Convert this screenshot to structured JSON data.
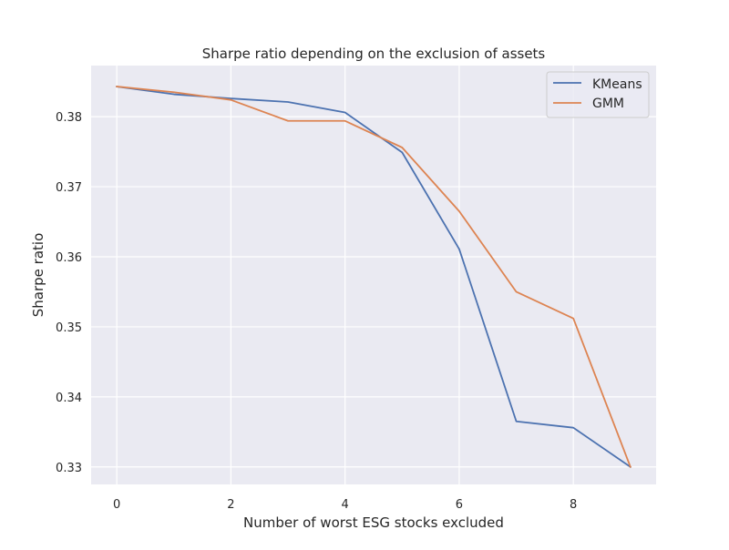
{
  "chart_data": {
    "type": "line",
    "title": "Sharpe ratio depending on the exclusion of assets",
    "xlabel": "Number of worst ESG stocks excluded",
    "ylabel": "Sharpe ratio",
    "x": [
      0,
      1,
      2,
      3,
      4,
      5,
      6,
      7,
      8,
      9
    ],
    "xlim": [
      -0.45,
      9.45
    ],
    "ylim": [
      0.3275,
      0.3873
    ],
    "xticks": [
      0,
      2,
      4,
      6,
      8
    ],
    "yticks": [
      0.33,
      0.34,
      0.35,
      0.36,
      0.37,
      0.38
    ],
    "xtick_labels": [
      "0",
      "2",
      "4",
      "6",
      "8"
    ],
    "ytick_labels": [
      "0.33",
      "0.34",
      "0.35",
      "0.36",
      "0.37",
      "0.38"
    ],
    "grid": true,
    "legend_position": "top-right",
    "series": [
      {
        "name": "KMeans",
        "color": "#4c72b0",
        "values": [
          0.3843,
          0.3832,
          0.3826,
          0.3821,
          0.3806,
          0.3749,
          0.3611,
          0.3365,
          0.3356,
          0.33
        ]
      },
      {
        "name": "GMM",
        "color": "#dd8452",
        "values": [
          0.3843,
          0.3835,
          0.3824,
          0.3794,
          0.3794,
          0.3756,
          0.3665,
          0.355,
          0.3512,
          0.33
        ]
      }
    ]
  },
  "colors": {
    "plot_background": "#eaeaf2",
    "grid": "#ffffff",
    "text": "#262626"
  }
}
